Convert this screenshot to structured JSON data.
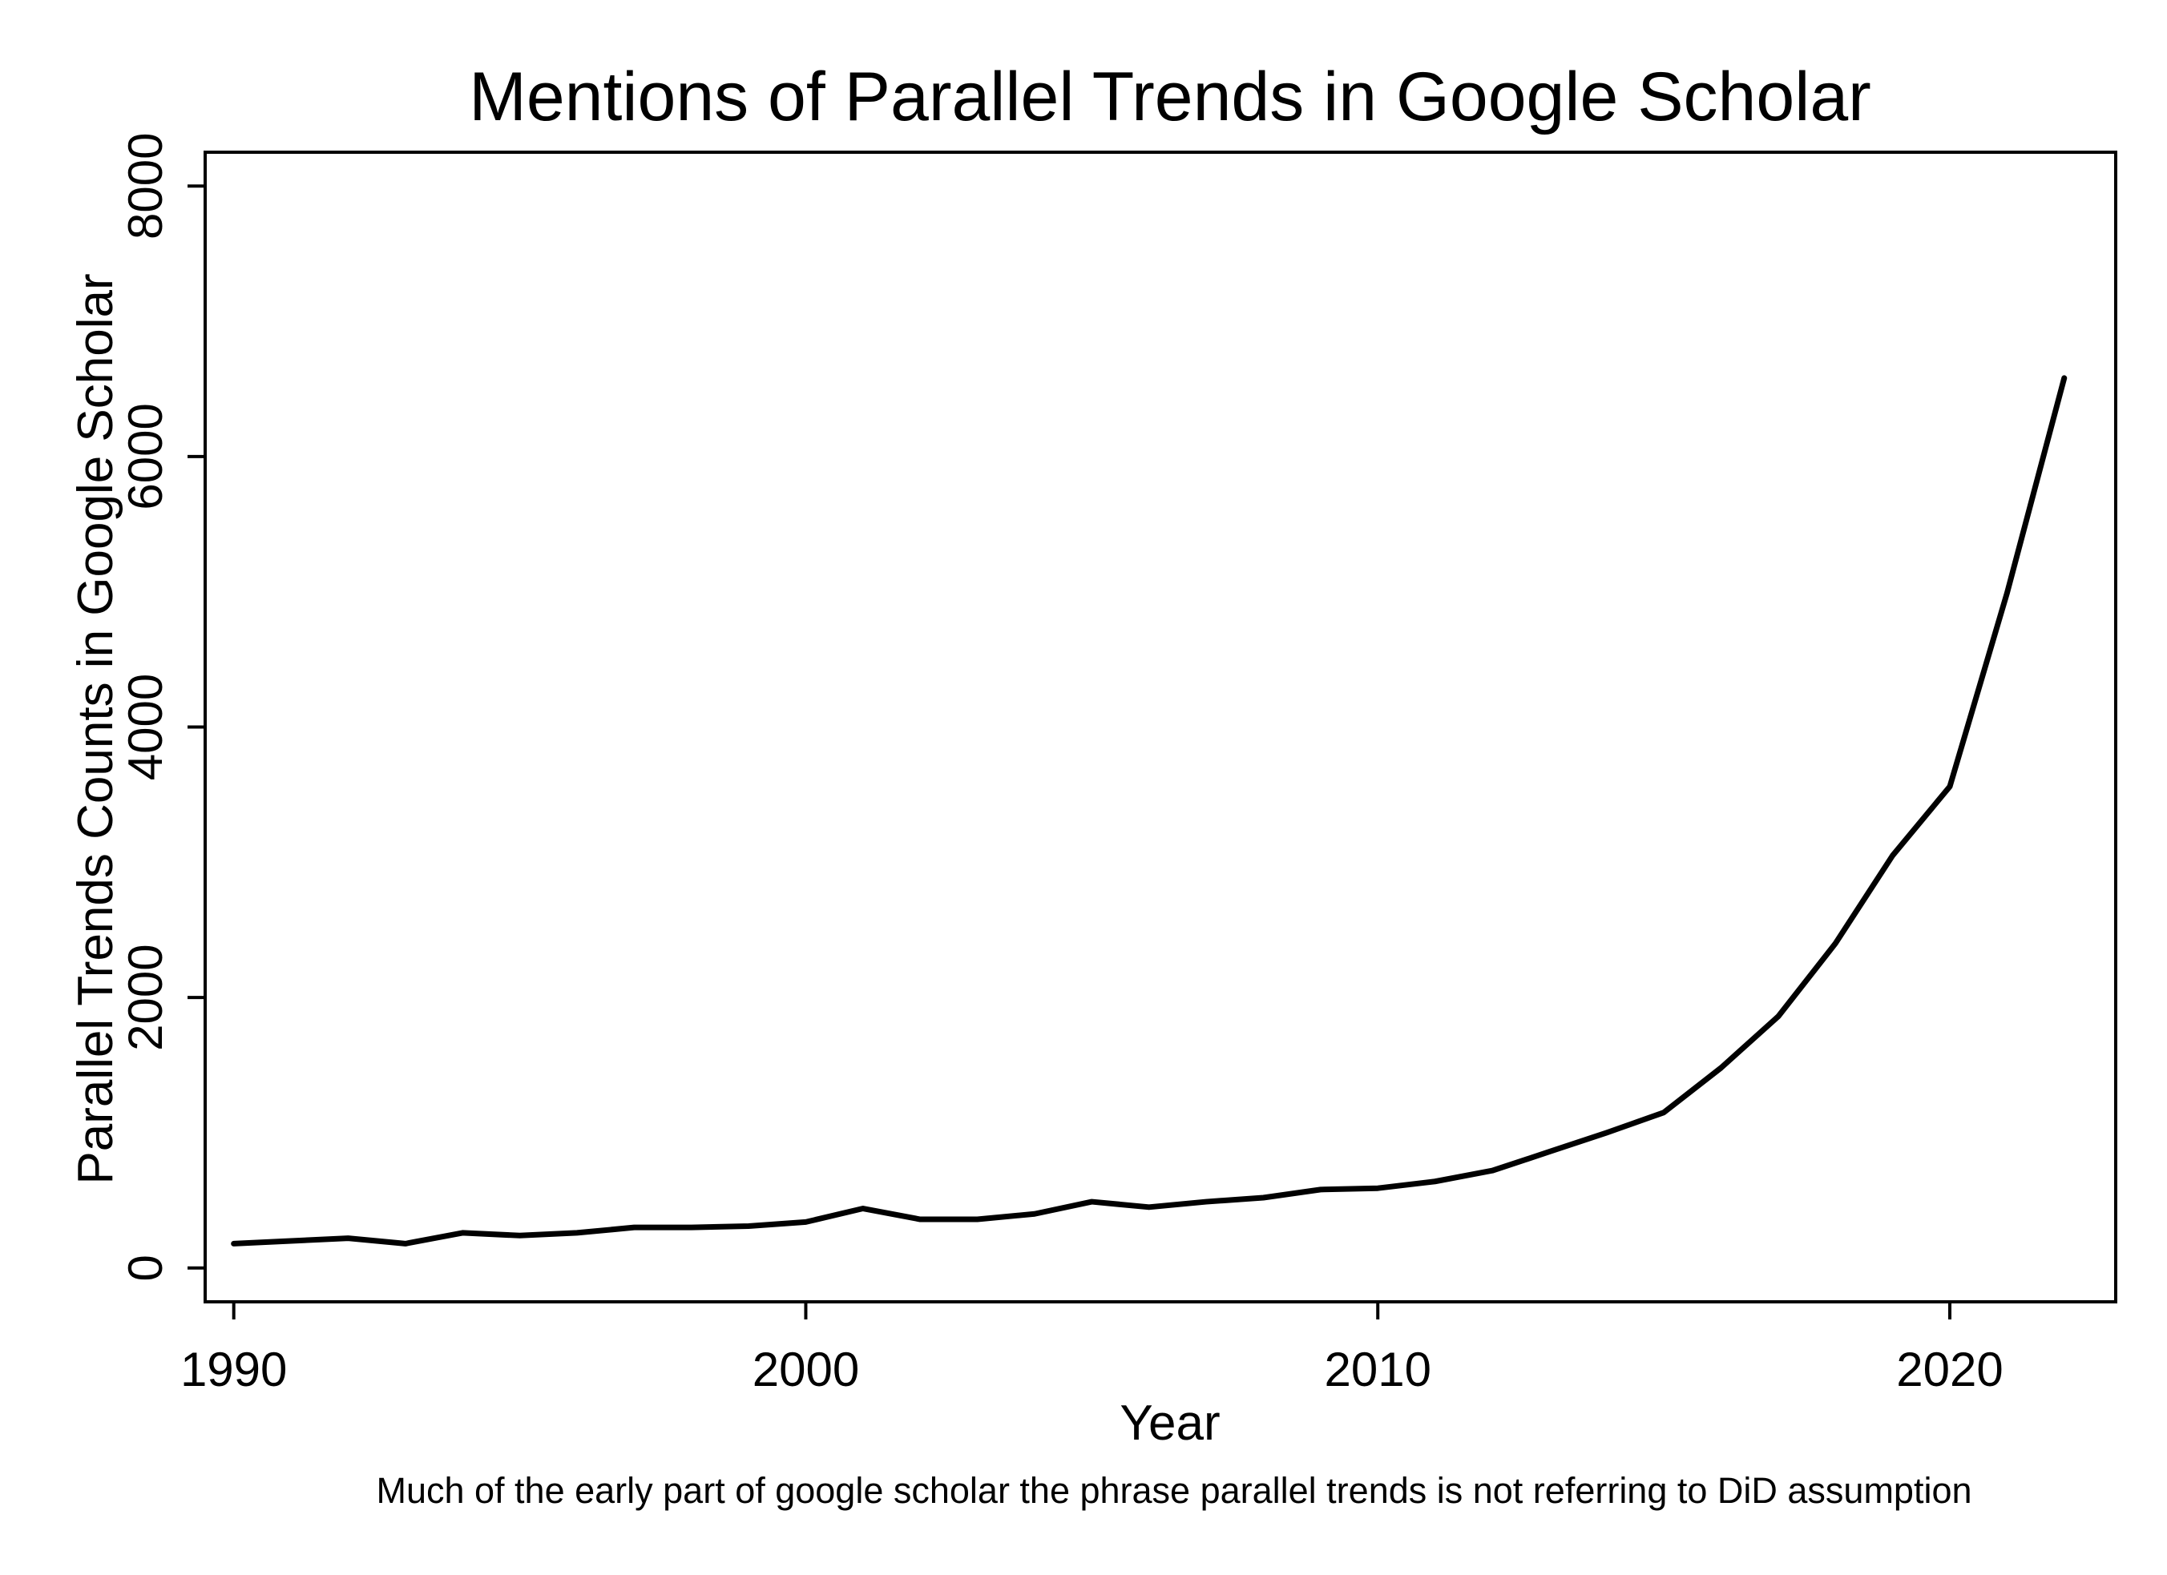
{
  "chart_data": {
    "type": "line",
    "title": "Mentions of Parallel Trends in Google Scholar",
    "xlabel": "Year",
    "ylabel": "Parallel Trends Counts in Google Scholar",
    "note": "Much of the early part of google scholar the phrase parallel trends is not referring to DiD assumption",
    "xlim": [
      1989.5,
      2022.9
    ],
    "ylim": [
      -250,
      8250
    ],
    "x_ticks": [
      1990,
      2000,
      2010,
      2020
    ],
    "x_tick_labels": [
      "1990",
      "2000",
      "2010",
      "2020"
    ],
    "y_ticks": [
      0,
      2000,
      4000,
      6000,
      8000
    ],
    "y_tick_labels": [
      "0",
      "2000",
      "4000",
      "6000",
      "8000"
    ],
    "grid": false,
    "line_color": "#000000",
    "series": [
      {
        "x": [
          1990,
          1991,
          1992,
          1993,
          1994,
          1995,
          1996,
          1997,
          1998,
          1999,
          2000,
          2001,
          2002,
          2003,
          2004,
          2005,
          2006,
          2007,
          2008,
          2009,
          2010,
          2011,
          2012,
          2013,
          2014,
          2015,
          2016,
          2017,
          2018,
          2019,
          2020,
          2021,
          2022
        ],
        "values": [
          180,
          200,
          220,
          180,
          260,
          240,
          260,
          300,
          300,
          310,
          340,
          440,
          360,
          360,
          400,
          490,
          450,
          490,
          520,
          580,
          590,
          640,
          720,
          860,
          1000,
          1150,
          1480,
          1860,
          2400,
          3050,
          3560,
          4990,
          6580
        ]
      }
    ]
  }
}
